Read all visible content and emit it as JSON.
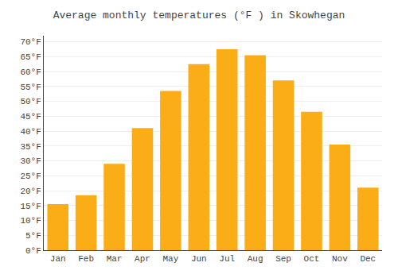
{
  "chart_data": {
    "type": "bar",
    "title": "Average monthly temperatures (°F ) in Skowhegan",
    "categories": [
      "Jan",
      "Feb",
      "Mar",
      "Apr",
      "May",
      "Jun",
      "Jul",
      "Aug",
      "Sep",
      "Oct",
      "Nov",
      "Dec"
    ],
    "values": [
      15.5,
      18.5,
      29.0,
      41.0,
      53.5,
      62.5,
      67.5,
      65.5,
      57.0,
      46.5,
      35.5,
      21.0
    ],
    "color": "#FBAD18",
    "ylim": [
      0,
      72
    ],
    "yticks": [
      {
        "value": 0,
        "label": "0°F"
      },
      {
        "value": 5,
        "label": "5°F"
      },
      {
        "value": 10,
        "label": "10°F"
      },
      {
        "value": 15,
        "label": "15°F"
      },
      {
        "value": 20,
        "label": "20°F"
      },
      {
        "value": 25,
        "label": "25°F"
      },
      {
        "value": 30,
        "label": "30°F"
      },
      {
        "value": 35,
        "label": "35°F"
      },
      {
        "value": 40,
        "label": "40°F"
      },
      {
        "value": 45,
        "label": "45°F"
      },
      {
        "value": 50,
        "label": "50°F"
      },
      {
        "value": 55,
        "label": "55°F"
      },
      {
        "value": 60,
        "label": "60°F"
      },
      {
        "value": 65,
        "label": "65°F"
      },
      {
        "value": 70,
        "label": "70°F"
      }
    ],
    "grid": true
  }
}
